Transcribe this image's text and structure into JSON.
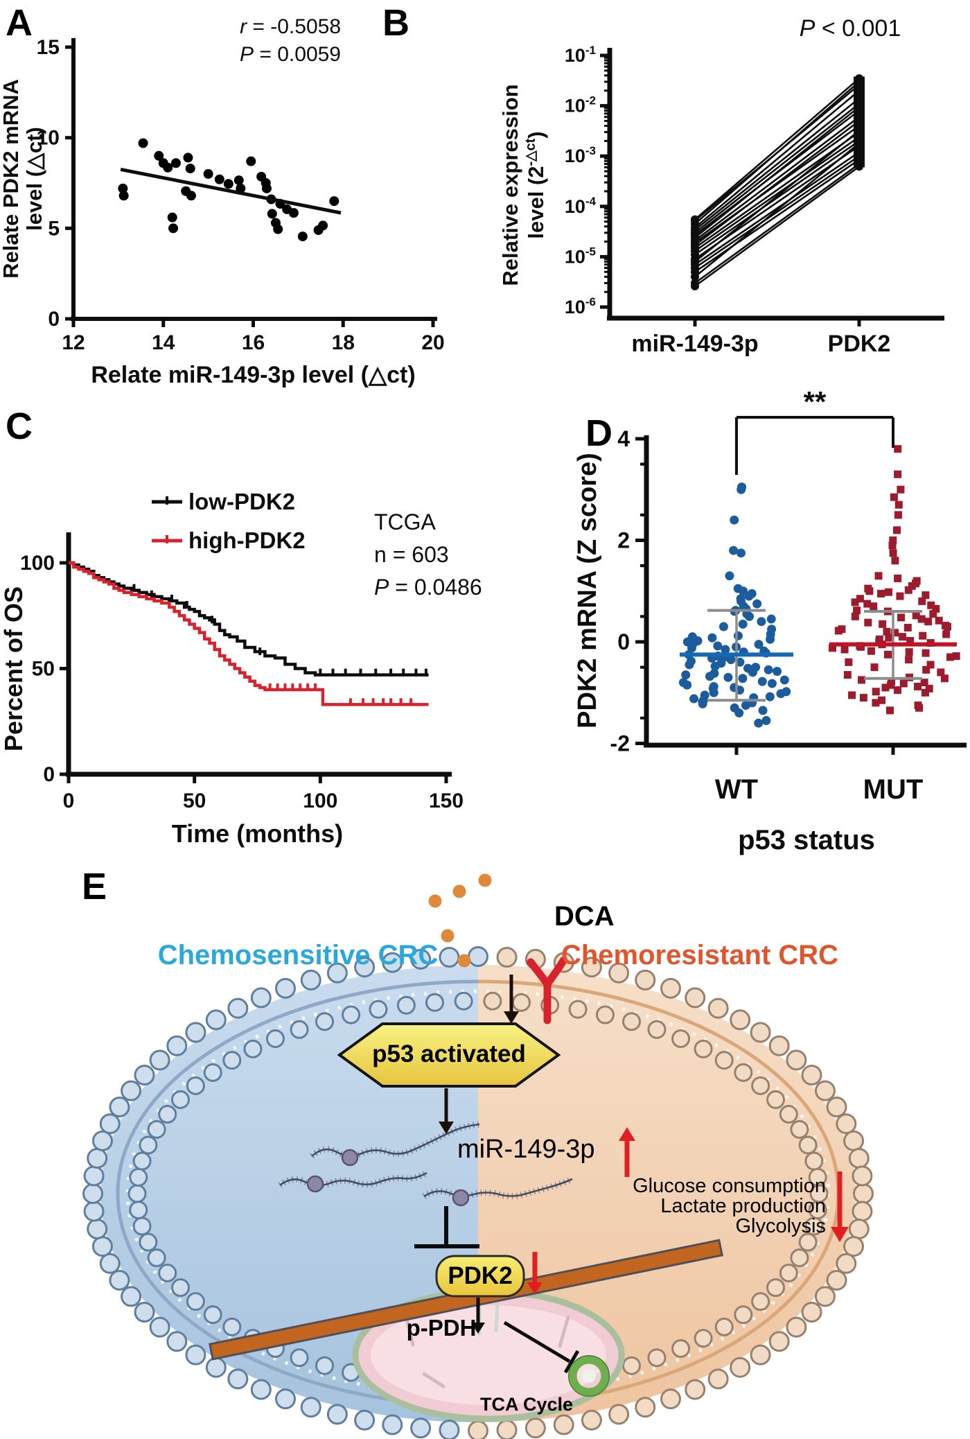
{
  "figure": {
    "background": "#ffffff"
  },
  "panels": {
    "A": {
      "label": "A"
    },
    "B": {
      "label": "B"
    },
    "C": {
      "label": "C"
    },
    "D": {
      "label": "D"
    },
    "E": {
      "label": "E"
    }
  },
  "chart_data": [
    {
      "panel": "A",
      "type": "scatter",
      "xlabel": "Relate miR-149-3p level  (△ct)",
      "ylabel_lines": [
        "Relate PDK2 mRNA",
        "level (△ct)"
      ],
      "xlim": [
        12,
        20
      ],
      "ylim": [
        0,
        15
      ],
      "xticks": [
        12,
        14,
        16,
        18,
        20
      ],
      "yticks": [
        0,
        5,
        10,
        15
      ],
      "annotations": [
        "r = -0.5058",
        "P = 0.0059"
      ],
      "marker_color": "#000000",
      "trendline": [
        [
          13.05,
          8.25
        ],
        [
          17.95,
          5.85
        ]
      ],
      "points": [
        [
          13.1,
          7.2
        ],
        [
          13.12,
          6.8
        ],
        [
          13.55,
          9.7
        ],
        [
          13.9,
          9.0
        ],
        [
          14.0,
          8.6
        ],
        [
          14.1,
          8.35
        ],
        [
          14.28,
          8.6
        ],
        [
          14.2,
          5.6
        ],
        [
          14.22,
          5.0
        ],
        [
          14.55,
          8.9
        ],
        [
          14.6,
          8.3
        ],
        [
          14.5,
          7.05
        ],
        [
          14.62,
          6.8
        ],
        [
          15.0,
          8.0
        ],
        [
          15.25,
          7.7
        ],
        [
          15.45,
          7.45
        ],
        [
          15.68,
          7.65
        ],
        [
          15.72,
          7.2
        ],
        [
          15.95,
          8.7
        ],
        [
          16.18,
          7.85
        ],
        [
          16.28,
          7.5
        ],
        [
          16.3,
          7.2
        ],
        [
          16.4,
          6.6
        ],
        [
          16.42,
          5.8
        ],
        [
          16.5,
          5.3
        ],
        [
          16.55,
          4.95
        ],
        [
          16.6,
          6.35
        ],
        [
          16.75,
          6.05
        ],
        [
          16.9,
          5.85
        ],
        [
          17.1,
          4.55
        ],
        [
          17.45,
          4.9
        ],
        [
          17.55,
          5.15
        ],
        [
          17.8,
          6.5
        ]
      ]
    },
    {
      "panel": "B",
      "type": "paired-line",
      "yscale": "log",
      "ylim_exponents": [
        -6,
        -1
      ],
      "ylabel_line1": "Relative expression",
      "ylabel_line2": {
        "pre": "level (2",
        "sup": "-△ct",
        "post": ")"
      },
      "categories": [
        "miR-149-3p",
        "PDK2"
      ],
      "annotation": "P < 0.001",
      "line_color": "#0d0d0d",
      "pdk2_bar_range": [
        0.0006,
        0.038
      ],
      "pairs": [
        [
          5.5e-05,
          0.035
        ],
        [
          5.2e-05,
          0.026
        ],
        [
          4.5e-05,
          0.03
        ],
        [
          3.8e-05,
          0.02
        ],
        [
          3.4e-05,
          0.014
        ],
        [
          3e-05,
          0.011
        ],
        [
          2.7e-05,
          0.008
        ],
        [
          2.4e-05,
          0.0095
        ],
        [
          2.1e-05,
          0.006
        ],
        [
          1.9e-05,
          0.004
        ],
        [
          1.7e-05,
          0.005
        ],
        [
          1.5e-05,
          0.003
        ],
        [
          1.3e-05,
          0.0024
        ],
        [
          1.1e-05,
          0.002
        ],
        [
          9e-06,
          0.0016
        ],
        [
          8e-06,
          0.0032
        ],
        [
          7e-06,
          0.0012
        ],
        [
          6e-06,
          0.001
        ],
        [
          5e-06,
          0.00085
        ],
        [
          4e-06,
          0.0018
        ],
        [
          3e-06,
          0.0007
        ],
        [
          2.6e-06,
          0.00062
        ]
      ]
    },
    {
      "panel": "C",
      "type": "km",
      "xlabel": "Time (months)",
      "ylabel": "Percent of OS",
      "xlim": [
        0,
        150
      ],
      "xticks": [
        0,
        50,
        100,
        150
      ],
      "yticks": [
        0,
        50,
        100
      ],
      "annotations": [
        "TCGA",
        "n = 603",
        "P = 0.0486"
      ],
      "series": [
        {
          "name": "low-PDK2",
          "color": "#0d0d0d",
          "steps": [
            [
              0,
              100
            ],
            [
              2,
              99
            ],
            [
              4,
              98
            ],
            [
              6,
              97
            ],
            [
              8,
              96
            ],
            [
              10,
              94
            ],
            [
              12,
              93
            ],
            [
              14,
              92
            ],
            [
              16,
              91
            ],
            [
              18,
              90
            ],
            [
              20,
              89
            ],
            [
              22,
              88
            ],
            [
              25,
              87
            ],
            [
              28,
              86
            ],
            [
              31,
              85
            ],
            [
              34,
              84
            ],
            [
              37,
              83
            ],
            [
              40,
              82
            ],
            [
              43,
              81
            ],
            [
              46,
              79
            ],
            [
              48,
              78
            ],
            [
              50,
              77
            ],
            [
              52,
              75
            ],
            [
              54,
              74
            ],
            [
              56,
              73
            ],
            [
              58,
              71
            ],
            [
              60,
              68
            ],
            [
              62,
              66
            ],
            [
              64,
              65
            ],
            [
              67,
              63
            ],
            [
              70,
              60
            ],
            [
              74,
              58
            ],
            [
              78,
              56
            ],
            [
              82,
              55
            ],
            [
              86,
              52
            ],
            [
              90,
              50
            ],
            [
              94,
              48
            ],
            [
              98,
              47
            ],
            [
              143,
              47
            ]
          ],
          "censors": [
            [
              26,
              87
            ],
            [
              33,
              84
            ],
            [
              41,
              82
            ],
            [
              47,
              79
            ],
            [
              57,
              72
            ],
            [
              76,
              57
            ],
            [
              100,
              47
            ],
            [
              105,
              47
            ],
            [
              110,
              47
            ],
            [
              116,
              47
            ],
            [
              122,
              47
            ],
            [
              128,
              47
            ],
            [
              133,
              47
            ],
            [
              138,
              47
            ],
            [
              142,
              47
            ]
          ]
        },
        {
          "name": "high-PDK2",
          "color": "#d8232f",
          "steps": [
            [
              0,
              100
            ],
            [
              2,
              98
            ],
            [
              4,
              97
            ],
            [
              6,
              96
            ],
            [
              8,
              95
            ],
            [
              10,
              93
            ],
            [
              12,
              92
            ],
            [
              14,
              91
            ],
            [
              16,
              90
            ],
            [
              18,
              88
            ],
            [
              20,
              87
            ],
            [
              22,
              86
            ],
            [
              25,
              85
            ],
            [
              28,
              84
            ],
            [
              31,
              83
            ],
            [
              34,
              82
            ],
            [
              37,
              81
            ],
            [
              40,
              79
            ],
            [
              42,
              77
            ],
            [
              44,
              75
            ],
            [
              46,
              73
            ],
            [
              48,
              71
            ],
            [
              50,
              69
            ],
            [
              52,
              67
            ],
            [
              54,
              64
            ],
            [
              56,
              62
            ],
            [
              58,
              59
            ],
            [
              60,
              56
            ],
            [
              62,
              54
            ],
            [
              64,
              52
            ],
            [
              66,
              50
            ],
            [
              68,
              48
            ],
            [
              70,
              46
            ],
            [
              72,
              44
            ],
            [
              74,
              42
            ],
            [
              76,
              41
            ],
            [
              78,
              40
            ],
            [
              100,
              40
            ],
            [
              101,
              33
            ],
            [
              143,
              33
            ]
          ],
          "censors": [
            [
              80,
              40
            ],
            [
              83,
              40
            ],
            [
              86,
              40
            ],
            [
              89,
              40
            ],
            [
              92,
              40
            ],
            [
              95,
              40
            ],
            [
              98,
              40
            ],
            [
              112,
              33
            ],
            [
              117,
              33
            ],
            [
              121,
              33
            ],
            [
              125,
              33
            ],
            [
              128,
              33
            ],
            [
              132,
              33
            ],
            [
              136,
              33
            ]
          ]
        }
      ]
    },
    {
      "panel": "D",
      "type": "beeswarm",
      "ylabel": "PDK2 mRNA (Z score)",
      "xlabel": "p53 status",
      "ylim": [
        -2,
        4
      ],
      "yticks": [
        -2,
        0,
        2,
        4
      ],
      "significance": "**",
      "whisker_color": "#8c8c8c",
      "groups": [
        {
          "name": "WT",
          "marker": "circle",
          "color": "#1d5c9c",
          "mean_color": "#1568b4",
          "mean": -0.25,
          "whisker_top": 0.62,
          "whisker_bottom": -1.15,
          "values": [
            3.05,
            3.0,
            2.4,
            1.8,
            1.75,
            1.3,
            1.05,
            1.0,
            0.95,
            0.9,
            0.85,
            0.8,
            0.75,
            0.7,
            0.65,
            0.62,
            0.6,
            0.55,
            0.5,
            0.45,
            0.4,
            0.35,
            0.3,
            0.25,
            0.15,
            0.12,
            0.1,
            0.08,
            0.05,
            0.02,
            0.0,
            -0.02,
            -0.05,
            -0.08,
            -0.1,
            -0.12,
            -0.15,
            -0.18,
            -0.2,
            -0.22,
            -0.25,
            -0.28,
            -0.3,
            -0.32,
            -0.35,
            -0.38,
            -0.4,
            -0.42,
            -0.45,
            -0.48,
            -0.5,
            -0.52,
            -0.55,
            -0.58,
            -0.6,
            -0.62,
            -0.65,
            -0.68,
            -0.7,
            -0.72,
            -0.75,
            -0.78,
            -0.8,
            -0.82,
            -0.85,
            -0.88,
            -0.9,
            -0.92,
            -0.95,
            -0.98,
            -1.0,
            -1.02,
            -1.05,
            -1.08,
            -1.1,
            -1.12,
            -1.15,
            -1.18,
            -1.2,
            -1.22,
            -1.25,
            -1.3,
            -1.35,
            -1.4,
            -1.55,
            -1.6
          ]
        },
        {
          "name": "MUT",
          "marker": "square",
          "color": "#9c1b2c",
          "mean_color": "#c01325",
          "mean": -0.05,
          "whisker_top": 0.6,
          "whisker_bottom": -0.72,
          "values": [
            3.8,
            3.3,
            3.0,
            2.85,
            2.7,
            2.5,
            2.2,
            2.0,
            1.9,
            1.75,
            1.6,
            1.3,
            1.25,
            1.2,
            1.15,
            1.1,
            1.05,
            1.02,
            1.0,
            0.98,
            0.95,
            0.92,
            0.9,
            0.85,
            0.8,
            0.78,
            0.75,
            0.72,
            0.7,
            0.65,
            0.62,
            0.6,
            0.55,
            0.52,
            0.5,
            0.48,
            0.45,
            0.42,
            0.4,
            0.38,
            0.35,
            0.32,
            0.3,
            0.28,
            0.25,
            0.22,
            0.2,
            0.18,
            0.15,
            0.12,
            0.1,
            0.08,
            0.05,
            0.02,
            0.0,
            -0.02,
            -0.05,
            -0.08,
            -0.1,
            -0.12,
            -0.15,
            -0.18,
            -0.2,
            -0.22,
            -0.25,
            -0.28,
            -0.3,
            -0.35,
            -0.4,
            -0.45,
            -0.5,
            -0.55,
            -0.6,
            -0.65,
            -0.7,
            -0.72,
            -0.75,
            -0.78,
            -0.8,
            -0.82,
            -0.85,
            -0.88,
            -0.9,
            -0.92,
            -0.95,
            -0.98,
            -1.0,
            -1.05,
            -1.1,
            -1.15,
            -1.2,
            -1.25,
            -1.3,
            -1.35
          ]
        }
      ]
    }
  ],
  "diagram": {
    "dca_label": "DCA",
    "left_region_label": "Chemosensitive CRC",
    "left_region_color": "#2aa7dc",
    "right_region_label": "Chemoresistant CRC",
    "right_region_color": "#e0552b",
    "p53_label": "p53 activated",
    "mirna_label": "miR-149-3p",
    "effects": [
      "Glucose consumption",
      "Lactate production",
      "Glycolysis"
    ],
    "pdk2_label": "PDK2",
    "ppdh_label": "p-PDH",
    "tca_label": "TCA Cycle",
    "arrow_red": "#e02020",
    "dca_dot_color": "#e0893a",
    "receptor_color": "#d8232f",
    "hexagon_fill_top": "#f7f283",
    "hexagon_fill_bottom": "#e7c43e",
    "pdk2_fill_top": "#f6ee72",
    "pdk2_fill_bottom": "#e9c53b",
    "seesaw_color": "#c2661f",
    "mito_fill": "#f2ccd4",
    "mito_inner_fill": "#f8dfe3",
    "mito_border": "#a9bf9d",
    "tca_ring_color": "#6fae4e",
    "cell_left_top": "#cadcee",
    "cell_left_bottom": "#a6c3dd",
    "cell_right_top": "#f6dfc9",
    "cell_right_bottom": "#eec49f",
    "bead_left_fill": "#cfdeed",
    "bead_left_stroke": "#5f7f9e",
    "bead_right_fill": "#f2dbc5",
    "bead_right_stroke": "#97816e",
    "mirna_strand_color": "#464c63",
    "mirna_blob_color": "#8d87a8"
  }
}
